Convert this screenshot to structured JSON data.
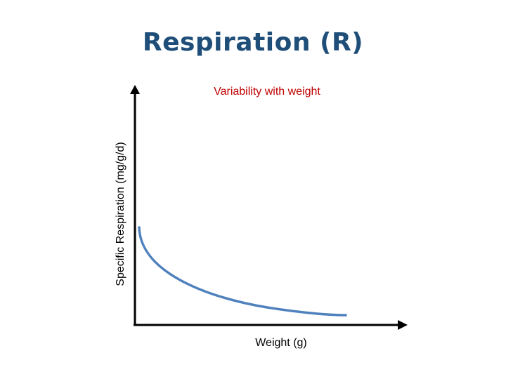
{
  "title": "Respiration (R)",
  "subtitle": "Variability with weight",
  "axes": {
    "x_label": "Weight (g)",
    "y_label": "Specific Respiration (mg/g/d)"
  },
  "colors": {
    "title": "#1f4e79",
    "subtitle": "#c00000",
    "curve": "#4f81bd",
    "axes": "#000000"
  },
  "curve": {
    "shape": "decreasing concave-up curve"
  }
}
